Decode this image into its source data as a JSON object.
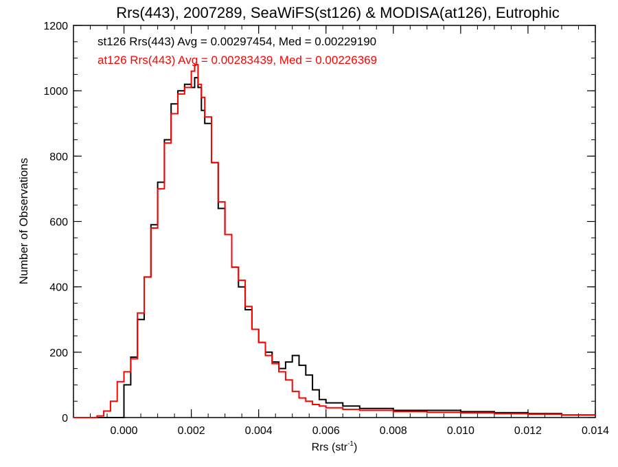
{
  "chart_data": {
    "type": "line",
    "title": "Rrs(443), 2007289, SeaWiFS(st126) & MODISA(at126), Eutrophic",
    "xlabel": "Rrs (str",
    "xlabel_sup": "-1",
    "xlabel_close": ")",
    "ylabel": "Number of Observations",
    "xlim": [
      -0.0015,
      0.014
    ],
    "ylim": [
      0,
      1200
    ],
    "x_ticks": [
      0.0,
      0.002,
      0.004,
      0.006,
      0.008,
      0.01,
      0.012,
      0.014
    ],
    "x_tick_labels": [
      "0.000",
      "0.002",
      "0.004",
      "0.006",
      "0.008",
      "0.010",
      "0.012",
      "0.014"
    ],
    "y_ticks": [
      0,
      200,
      400,
      600,
      800,
      1000,
      1200
    ],
    "y_tick_labels": [
      "0",
      "200",
      "400",
      "600",
      "800",
      "1000",
      "1200"
    ],
    "step": "histogram",
    "annotations": [
      {
        "text": "st126 Rrs(443) Avg = 0.00297454, Med = 0.00229190",
        "color": "#000000"
      },
      {
        "text": "at126 Rrs(443) Avg = 0.00283439, Med = 0.00226369",
        "color": "#ff0000"
      }
    ],
    "series": [
      {
        "color": "#000000",
        "x": [
          -0.0015,
          -0.0005,
          -0.0002,
          0.0,
          0.0002,
          0.0004,
          0.0006,
          0.0008,
          0.001,
          0.0012,
          0.0014,
          0.0016,
          0.0018,
          0.002,
          0.0021,
          0.0022,
          0.0023,
          0.0024,
          0.0026,
          0.0028,
          0.003,
          0.0032,
          0.0034,
          0.0036,
          0.0038,
          0.004,
          0.0042,
          0.0044,
          0.0046,
          0.0048,
          0.005,
          0.0052,
          0.0054,
          0.0056,
          0.0058,
          0.006,
          0.0065,
          0.007,
          0.008,
          0.009,
          0.01,
          0.011,
          0.012,
          0.013,
          0.014
        ],
        "values": [
          0,
          0,
          0,
          100,
          185,
          300,
          430,
          590,
          720,
          850,
          960,
          1000,
          1020,
          1010,
          1040,
          1010,
          940,
          900,
          780,
          640,
          560,
          460,
          400,
          330,
          270,
          230,
          200,
          170,
          150,
          170,
          190,
          160,
          130,
          85,
          55,
          45,
          35,
          28,
          22,
          22,
          18,
          15,
          12,
          8,
          5
        ]
      },
      {
        "color": "#ff0000",
        "x": [
          -0.0015,
          -0.001,
          -0.0008,
          -0.0006,
          -0.0004,
          -0.0002,
          0.0,
          0.0002,
          0.0004,
          0.0006,
          0.0008,
          0.001,
          0.0012,
          0.0014,
          0.0016,
          0.0018,
          0.002,
          0.0021,
          0.0022,
          0.0023,
          0.0024,
          0.0026,
          0.0028,
          0.003,
          0.0032,
          0.0034,
          0.0036,
          0.0038,
          0.004,
          0.0042,
          0.0044,
          0.0046,
          0.0048,
          0.005,
          0.0052,
          0.0054,
          0.0056,
          0.0058,
          0.006,
          0.0065,
          0.007,
          0.008,
          0.009,
          0.01,
          0.011,
          0.012,
          0.013,
          0.014
        ],
        "values": [
          0,
          0,
          5,
          20,
          50,
          110,
          140,
          180,
          320,
          430,
          580,
          700,
          840,
          930,
          990,
          1010,
          1060,
          1080,
          1020,
          980,
          920,
          780,
          660,
          560,
          460,
          420,
          340,
          270,
          230,
          190,
          165,
          140,
          115,
          80,
          60,
          50,
          40,
          35,
          30,
          25,
          22,
          18,
          16,
          14,
          12,
          10,
          8,
          5
        ]
      }
    ]
  }
}
